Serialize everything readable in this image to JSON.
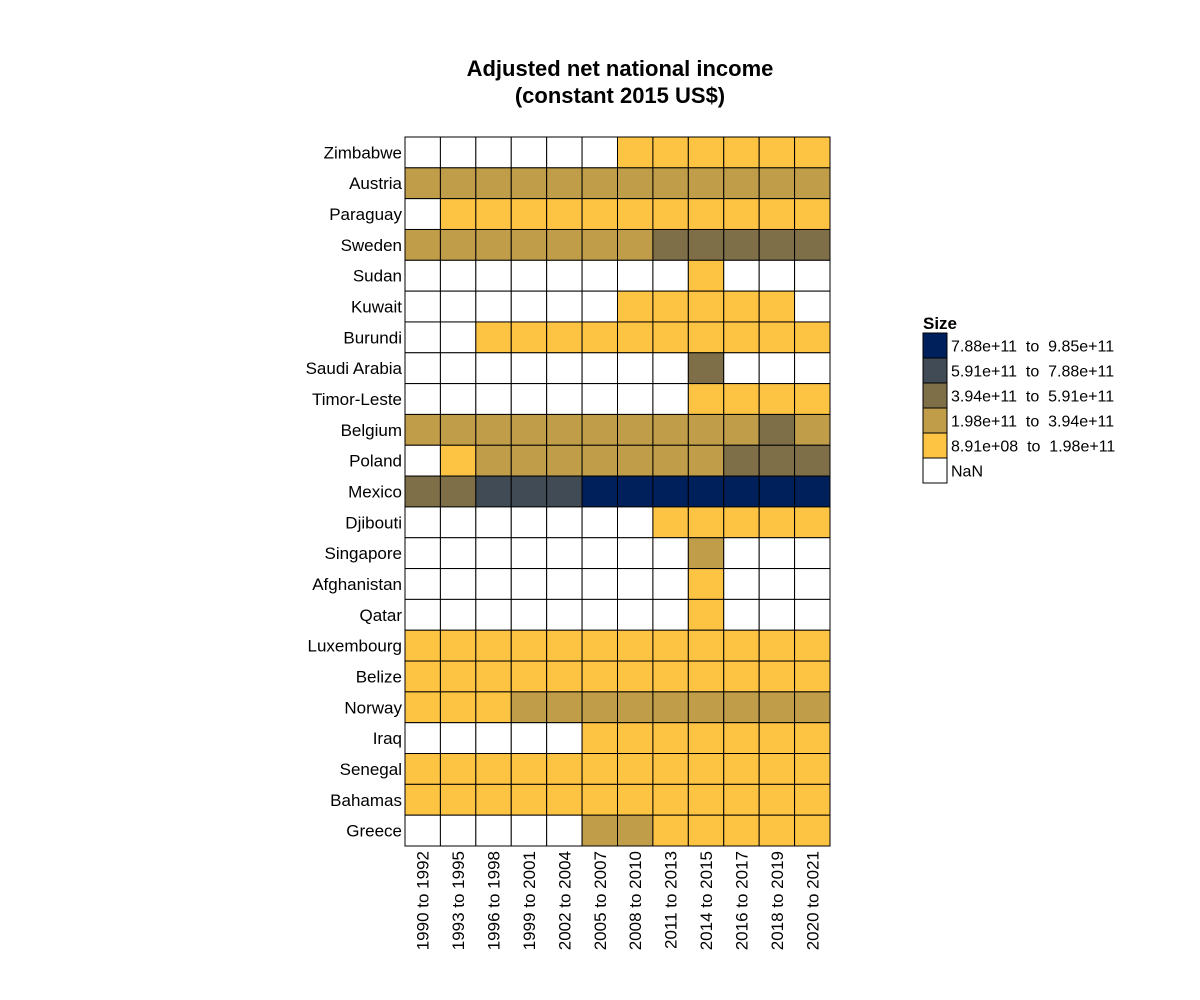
{
  "chart_data": {
    "type": "heatmap",
    "title_lines": [
      "Adjusted net national income",
      "(constant 2015 US$)"
    ],
    "xlabel": "",
    "ylabel": "",
    "x_categories": [
      "1990 to 1992",
      "1993 to 1995",
      "1996 to 1998",
      "1999 to 2001",
      "2002 to 2004",
      "2005 to 2007",
      "2008 to 2010",
      "2011 to 2013",
      "2014 to 2015",
      "2016 to 2017",
      "2018 to 2019",
      "2020 to 2021"
    ],
    "y_categories": [
      "Zimbabwe",
      "Austria",
      "Paraguay",
      "Sweden",
      "Sudan",
      "Kuwait",
      "Burundi",
      "Saudi Arabia",
      "Timor-Leste",
      "Belgium",
      "Poland",
      "Mexico",
      "Djibouti",
      "Singapore",
      "Afghanistan",
      "Qatar",
      "Luxembourg",
      "Belize",
      "Norway",
      "Iraq",
      "Senegal",
      "Bahamas",
      "Greece"
    ],
    "legend": {
      "title": "Size",
      "placement": "right",
      "bins": [
        {
          "label": "7.88e+11  to  9.85e+11",
          "color": "#00205b"
        },
        {
          "label": "5.91e+11  to  7.88e+11",
          "color": "#414b56"
        },
        {
          "label": "3.94e+11  to  5.91e+11",
          "color": "#7e6f49"
        },
        {
          "label": "1.98e+11  to  3.94e+11",
          "color": "#c09d48"
        },
        {
          "label": "8.91e+08  to  1.98e+11",
          "color": "#fdc342"
        },
        {
          "label": "NaN",
          "color": "#ffffff"
        }
      ]
    },
    "cell_bins_note_legend_index": "each cell value is the index into legend.bins (0 = highest range, 5 = NaN)",
    "cells": [
      [
        5,
        5,
        5,
        5,
        5,
        5,
        4,
        4,
        4,
        4,
        4,
        4
      ],
      [
        3,
        3,
        3,
        3,
        3,
        3,
        3,
        3,
        3,
        3,
        3,
        3
      ],
      [
        5,
        4,
        4,
        4,
        4,
        4,
        4,
        4,
        4,
        4,
        4,
        4
      ],
      [
        3,
        3,
        3,
        3,
        3,
        3,
        3,
        2,
        2,
        2,
        2,
        2
      ],
      [
        5,
        5,
        5,
        5,
        5,
        5,
        5,
        5,
        4,
        5,
        5,
        5
      ],
      [
        5,
        5,
        5,
        5,
        5,
        5,
        4,
        4,
        4,
        4,
        4,
        5
      ],
      [
        5,
        5,
        4,
        4,
        4,
        4,
        4,
        4,
        4,
        4,
        4,
        4
      ],
      [
        5,
        5,
        5,
        5,
        5,
        5,
        5,
        5,
        2,
        5,
        5,
        5
      ],
      [
        5,
        5,
        5,
        5,
        5,
        5,
        5,
        5,
        4,
        4,
        4,
        4
      ],
      [
        3,
        3,
        3,
        3,
        3,
        3,
        3,
        3,
        3,
        3,
        2,
        3
      ],
      [
        5,
        4,
        3,
        3,
        3,
        3,
        3,
        3,
        3,
        2,
        2,
        2
      ],
      [
        2,
        2,
        1,
        1,
        1,
        0,
        0,
        0,
        0,
        0,
        0,
        0
      ],
      [
        5,
        5,
        5,
        5,
        5,
        5,
        5,
        4,
        4,
        4,
        4,
        4
      ],
      [
        5,
        5,
        5,
        5,
        5,
        5,
        5,
        5,
        3,
        5,
        5,
        5
      ],
      [
        5,
        5,
        5,
        5,
        5,
        5,
        5,
        5,
        4,
        5,
        5,
        5
      ],
      [
        5,
        5,
        5,
        5,
        5,
        5,
        5,
        5,
        4,
        5,
        5,
        5
      ],
      [
        4,
        4,
        4,
        4,
        4,
        4,
        4,
        4,
        4,
        4,
        4,
        4
      ],
      [
        4,
        4,
        4,
        4,
        4,
        4,
        4,
        4,
        4,
        4,
        4,
        4
      ],
      [
        4,
        4,
        4,
        3,
        3,
        3,
        3,
        3,
        3,
        3,
        3,
        3
      ],
      [
        5,
        5,
        5,
        5,
        5,
        4,
        4,
        4,
        4,
        4,
        4,
        4
      ],
      [
        4,
        4,
        4,
        4,
        4,
        4,
        4,
        4,
        4,
        4,
        4,
        4
      ],
      [
        4,
        4,
        4,
        4,
        4,
        4,
        4,
        4,
        4,
        4,
        4,
        4
      ],
      [
        5,
        5,
        5,
        5,
        5,
        3,
        3,
        4,
        4,
        4,
        4,
        4
      ]
    ]
  }
}
